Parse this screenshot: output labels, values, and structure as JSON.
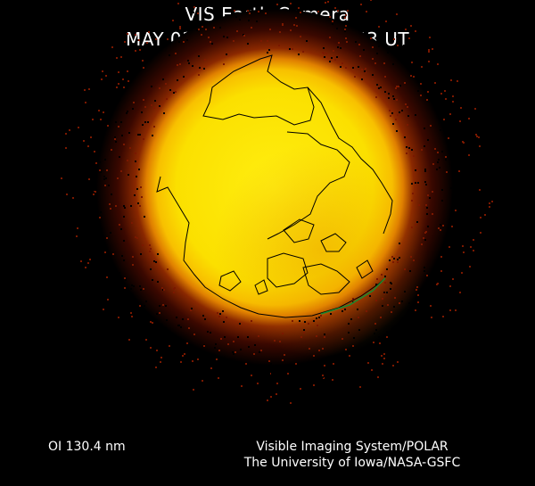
{
  "header": {
    "title": "VIS Earth Camera",
    "timestamp": "MAY 03, 2000/124 1428:53 UT"
  },
  "footer": {
    "band": "OI  130.4 nm",
    "credit_line1": "Visible Imaging System/POLAR",
    "credit_line2": "The University of Iowa/NASA-GSFC"
  },
  "image": {
    "subject": "Earth far-ultraviolet airglow disk with coastline overlay",
    "colors": {
      "core": "#ffee00",
      "limb": "#f09000",
      "halo": "#801800",
      "coastline": "#000000",
      "background": "#000000"
    }
  }
}
